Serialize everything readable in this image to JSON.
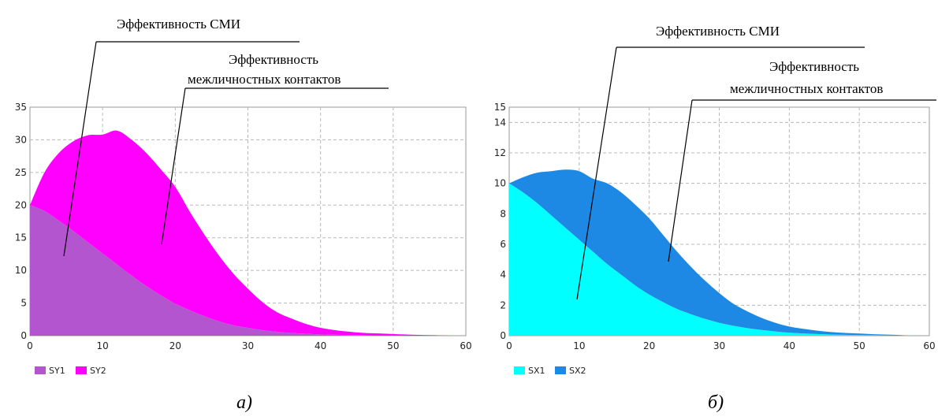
{
  "panels": [
    {
      "caption": "а)",
      "annotation_media": "Эффективность СМИ",
      "annotation_contacts": [
        "Эффективность",
        "межличностных контактов"
      ],
      "chart_data": {
        "type": "area",
        "stacked": true,
        "x": [
          0,
          2,
          4,
          6,
          8,
          10,
          12,
          14,
          16,
          18,
          20,
          22,
          24,
          26,
          28,
          30,
          32,
          34,
          36,
          38,
          40,
          42,
          44,
          46,
          48,
          50,
          52,
          54,
          56,
          58
        ],
        "series": [
          {
            "name": "SY1",
            "color": "#b455d0",
            "values": [
              20,
              19.1,
              17.6,
              16.0,
              14.3,
              12.6,
              10.9,
              9.2,
              7.6,
              6.2,
              4.9,
              3.9,
              3.0,
              2.2,
              1.6,
              1.2,
              0.85,
              0.6,
              0.42,
              0.3,
              0.2,
              0.14,
              0.1,
              0.07,
              0.05,
              0.03,
              0.02,
              0.01,
              0.01,
              0
            ]
          },
          {
            "name": "SY2",
            "color": "#ff00ff",
            "values": [
              0,
              5.9,
              10.4,
              13.8,
              16.4,
              18.2,
              20.5,
              20.8,
              20.4,
              19.3,
              17.9,
              15.1,
              12.5,
              10.1,
              7.9,
              6.0,
              4.3,
              3.0,
              2.2,
              1.5,
              1.0,
              0.7,
              0.5,
              0.35,
              0.3,
              0.22,
              0.15,
              0.1,
              0.06,
              0
            ]
          }
        ],
        "xlim": [
          0,
          60
        ],
        "ylim": [
          0,
          35
        ],
        "xticks": [
          0,
          10,
          20,
          30,
          40,
          50,
          60
        ],
        "yticks": [
          0,
          5,
          10,
          15,
          20,
          25,
          30,
          35
        ],
        "grid": true,
        "legend_placement": "bottom-left"
      }
    },
    {
      "caption": "б)",
      "annotation_media": "Эффективность СМИ",
      "annotation_contacts": [
        "Эффективность",
        "межличностных контактов"
      ],
      "chart_data": {
        "type": "area",
        "stacked": true,
        "x": [
          0,
          2,
          4,
          6,
          8,
          10,
          12,
          14,
          16,
          18,
          20,
          22,
          24,
          26,
          28,
          30,
          32,
          34,
          36,
          38,
          40,
          42,
          44,
          46,
          48,
          50,
          52,
          54,
          56,
          58
        ],
        "series": [
          {
            "name": "SX1",
            "color": "#00ffff",
            "values": [
              10,
              9.4,
              8.7,
              7.9,
              7.1,
              6.3,
              5.5,
              4.7,
              4.0,
              3.3,
              2.7,
              2.2,
              1.75,
              1.4,
              1.1,
              0.85,
              0.65,
              0.5,
              0.38,
              0.28,
              0.2,
              0.15,
              0.11,
              0.08,
              0.06,
              0.04,
              0.03,
              0.02,
              0.01,
              0
            ]
          },
          {
            "name": "SX2",
            "color": "#1e88e5",
            "values": [
              0,
              1.0,
              2.0,
              2.9,
              3.8,
              4.5,
              4.8,
              5.3,
              5.4,
              5.3,
              5.0,
              4.4,
              3.75,
              3.1,
              2.5,
              1.95,
              1.45,
              1.1,
              0.8,
              0.57,
              0.4,
              0.3,
              0.22,
              0.16,
              0.12,
              0.1,
              0.07,
              0.05,
              0.03,
              0
            ]
          }
        ],
        "xlim": [
          0,
          60
        ],
        "ylim": [
          0,
          15
        ],
        "xticks": [
          0,
          10,
          20,
          30,
          40,
          50,
          60
        ],
        "yticks": [
          0,
          2,
          4,
          6,
          8,
          10,
          12,
          14,
          15
        ],
        "grid": true,
        "legend_placement": "bottom-left"
      }
    }
  ]
}
